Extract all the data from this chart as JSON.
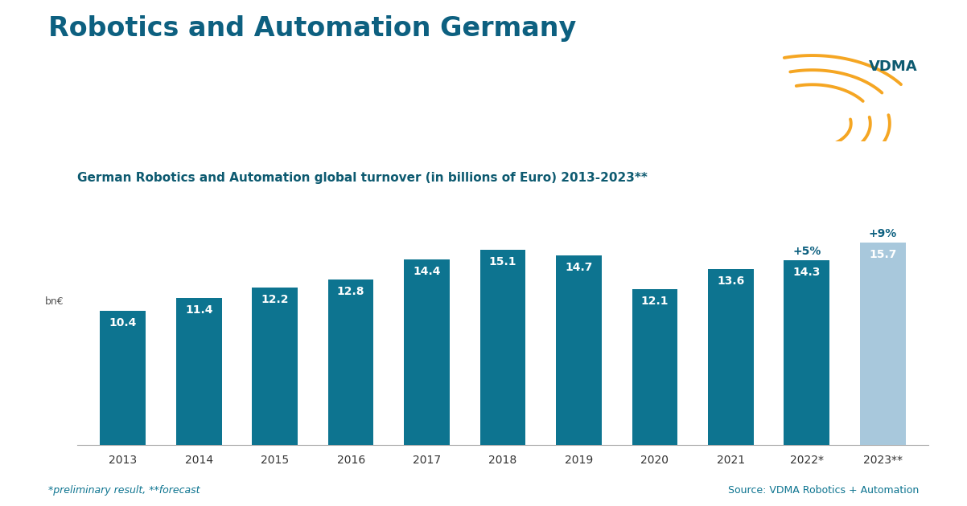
{
  "title": "Robotics and Automation Germany",
  "subtitle": "German Robotics and Automation global turnover (in billions of Euro) 2013-2023**",
  "categories": [
    "2013",
    "2014",
    "2015",
    "2016",
    "2017",
    "2018",
    "2019",
    "2020",
    "2021",
    "2022*",
    "2023**"
  ],
  "values": [
    10.4,
    11.4,
    12.2,
    12.8,
    14.4,
    15.1,
    14.7,
    12.1,
    13.6,
    14.3,
    15.7
  ],
  "bar_colors": [
    "#0d7490",
    "#0d7490",
    "#0d7490",
    "#0d7490",
    "#0d7490",
    "#0d7490",
    "#0d7490",
    "#0d7490",
    "#0d7490",
    "#0d7490",
    "#a8c8dc"
  ],
  "growth_labels": {
    "2022*": "+5%",
    "2023**": "+9%"
  },
  "ylabel": "bn€",
  "footer_left": "*preliminary result, **forecast",
  "footer_right": "Source: VDMA Robotics + Automation",
  "background_color": "#ffffff",
  "title_color": "#0d6080",
  "subtitle_color": "#0d5a70",
  "bar_label_color": "#ffffff",
  "growth_label_color": "#0d6080",
  "footer_color": "#0d7490",
  "title_fontsize": 24,
  "subtitle_fontsize": 11,
  "bar_label_fontsize": 10,
  "tick_fontsize": 10,
  "footer_fontsize": 9,
  "ylabel_fontsize": 9,
  "ylim": [
    0,
    18
  ],
  "bar_width": 0.6
}
